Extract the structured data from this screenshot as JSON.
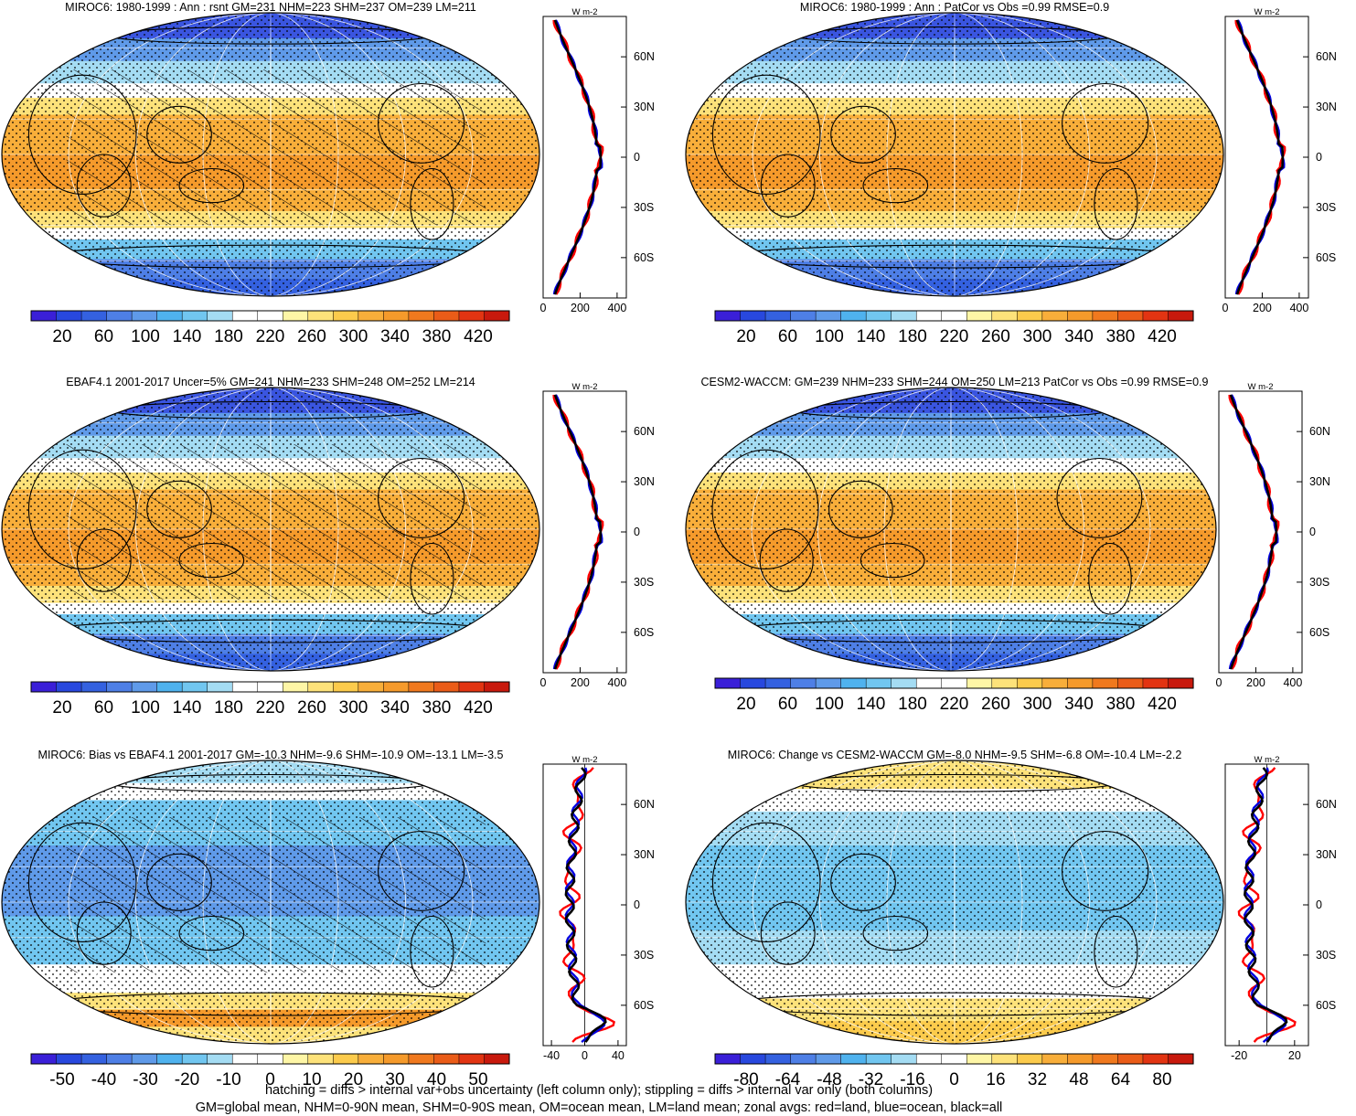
{
  "panels": [
    {
      "id": "miroc6-mean",
      "title": "MIROC6: 1980-1999 : Ann : rsnt GM=231 NHM=223 SHM=237 OM=239 LM=211",
      "colorbar": {
        "labels": [
          "20",
          "60",
          "100",
          "140",
          "180",
          "220",
          "260",
          "300",
          "340",
          "380",
          "420"
        ]
      },
      "zonal": {
        "xticks": [
          "0",
          "200",
          "400"
        ],
        "xmin": 0,
        "xmax": 450,
        "unit": "W m-2",
        "type": "full"
      },
      "overlay": "hatching+stippling"
    },
    {
      "id": "cesm2-waccm-mean",
      "title": "MIROC6: 1980-1999 : Ann : PatCor vs Obs =0.99 RMSE=0.9",
      "colorbar": {
        "labels": [
          "20",
          "60",
          "100",
          "140",
          "180",
          "220",
          "260",
          "300",
          "340",
          "380",
          "420"
        ]
      },
      "zonal": {
        "xticks": [
          "0",
          "200",
          "400"
        ],
        "xmin": 0,
        "xmax": 450,
        "unit": "W m-2",
        "type": "full"
      },
      "overlay": "stippling"
    },
    {
      "id": "ebaf-obs",
      "title": "EBAF4.1 2001-2017 Uncer=5% GM=241 NHM=233 SHM=248 OM=252 LM=214",
      "colorbar": {
        "labels": [
          "20",
          "60",
          "100",
          "140",
          "180",
          "220",
          "260",
          "300",
          "340",
          "380",
          "420"
        ]
      },
      "zonal": {
        "xticks": [
          "0",
          "200",
          "400"
        ],
        "xmin": 0,
        "xmax": 450,
        "unit": "W m-2",
        "type": "full"
      },
      "overlay": "hatching+stippling"
    },
    {
      "id": "cesm2-waccm",
      "title": "CESM2-WACCM: GM=239 NHM=233 SHM=244 OM=250 LM=213 PatCor vs Obs =0.99 RMSE=0.9",
      "colorbar": {
        "labels": [
          "20",
          "60",
          "100",
          "140",
          "180",
          "220",
          "260",
          "300",
          "340",
          "380",
          "420"
        ]
      },
      "zonal": {
        "xticks": [
          "0",
          "200",
          "400"
        ],
        "xmin": 0,
        "xmax": 450,
        "unit": "W m-2",
        "type": "full"
      },
      "overlay": "stippling"
    },
    {
      "id": "miroc6-bias",
      "title": "MIROC6: Bias vs EBAF4.1 2001-2017 GM=-10.3 NHM=-9.6 SHM=-10.9 OM=-13.1 LM=-3.5",
      "colorbar": {
        "labels": [
          "-50",
          "-40",
          "-30",
          "-20",
          "-10",
          "0",
          "10",
          "20",
          "30",
          "40",
          "50"
        ]
      },
      "zonal": {
        "xticks": [
          "-40",
          "0",
          "40"
        ],
        "xmin": -50,
        "xmax": 50,
        "unit": "W m-2",
        "type": "bias"
      },
      "overlay": "hatching+stippling"
    },
    {
      "id": "miroc6-change",
      "title": "MIROC6: Change vs CESM2-WACCM GM=-8.0 NHM=-9.5 SHM=-6.8 OM=-10.4 LM=-2.2",
      "colorbar": {
        "labels": [
          "-80",
          "-64",
          "-48",
          "-32",
          "-16",
          "0",
          "16",
          "32",
          "48",
          "64",
          "80"
        ]
      },
      "zonal": {
        "xticks": [
          "-20",
          "20"
        ],
        "xmin": -30,
        "xmax": 30,
        "unit": "W m-2",
        "type": "change"
      },
      "overlay": "stippling"
    }
  ],
  "latitude_labels": [
    "60N",
    "30N",
    "0",
    "30S",
    "60S"
  ],
  "footer": {
    "line1": "hatching = diffs > internal var+obs uncertainty (left column only); stippling = diffs > internal var only (both columns)",
    "line2": "GM=global mean, NHM=0-90N mean, SHM=0-90S mean, OM=ocean mean, LM=land mean; zonal avgs: red=land, blue=ocean, black=all"
  },
  "colors": {
    "palette": [
      "#3a1fd8",
      "#2848de",
      "#3461e0",
      "#4e7fe6",
      "#5f9ae9",
      "#4fb2ee",
      "#71c6f0",
      "#a4dcf3",
      "#ffffff",
      "#ffffff",
      "#fef6a6",
      "#fde27a",
      "#fccb4c",
      "#f8ae3a",
      "#f59a2b",
      "#f0791e",
      "#ea5c18",
      "#e23412",
      "#c8190d"
    ],
    "land_line": "#ff0000",
    "ocean_line": "#0000e0",
    "all_line": "#000000"
  }
}
